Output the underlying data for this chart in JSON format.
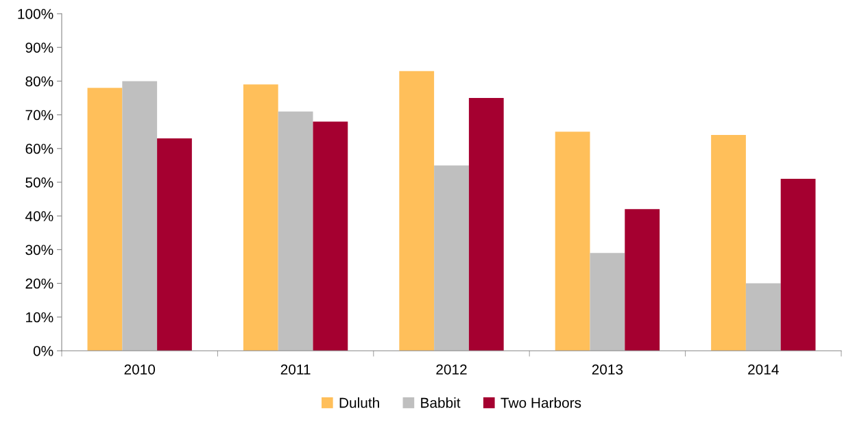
{
  "chart_data": {
    "type": "bar",
    "categories": [
      "2010",
      "2011",
      "2012",
      "2013",
      "2014"
    ],
    "series": [
      {
        "name": "Duluth",
        "color": "#ffbf5a",
        "values": [
          78,
          79,
          83,
          65,
          64
        ]
      },
      {
        "name": "Babbit",
        "color": "#bfbfbf",
        "values": [
          80,
          71,
          55,
          29,
          20
        ]
      },
      {
        "name": "Two Harbors",
        "color": "#a50030",
        "values": [
          63,
          68,
          75,
          42,
          51
        ]
      }
    ],
    "ylim": [
      0,
      100
    ],
    "yticks": [
      {
        "value": 0,
        "label": "0%"
      },
      {
        "value": 10,
        "label": "10%"
      },
      {
        "value": 20,
        "label": "20%"
      },
      {
        "value": 30,
        "label": "30%"
      },
      {
        "value": 40,
        "label": "40%"
      },
      {
        "value": 50,
        "label": "50%"
      },
      {
        "value": 60,
        "label": "60%"
      },
      {
        "value": 70,
        "label": "70%"
      },
      {
        "value": 80,
        "label": "80%"
      },
      {
        "value": 90,
        "label": "90%"
      },
      {
        "value": 100,
        "label": "100%"
      }
    ],
    "grid": false,
    "legend": "bottom"
  }
}
